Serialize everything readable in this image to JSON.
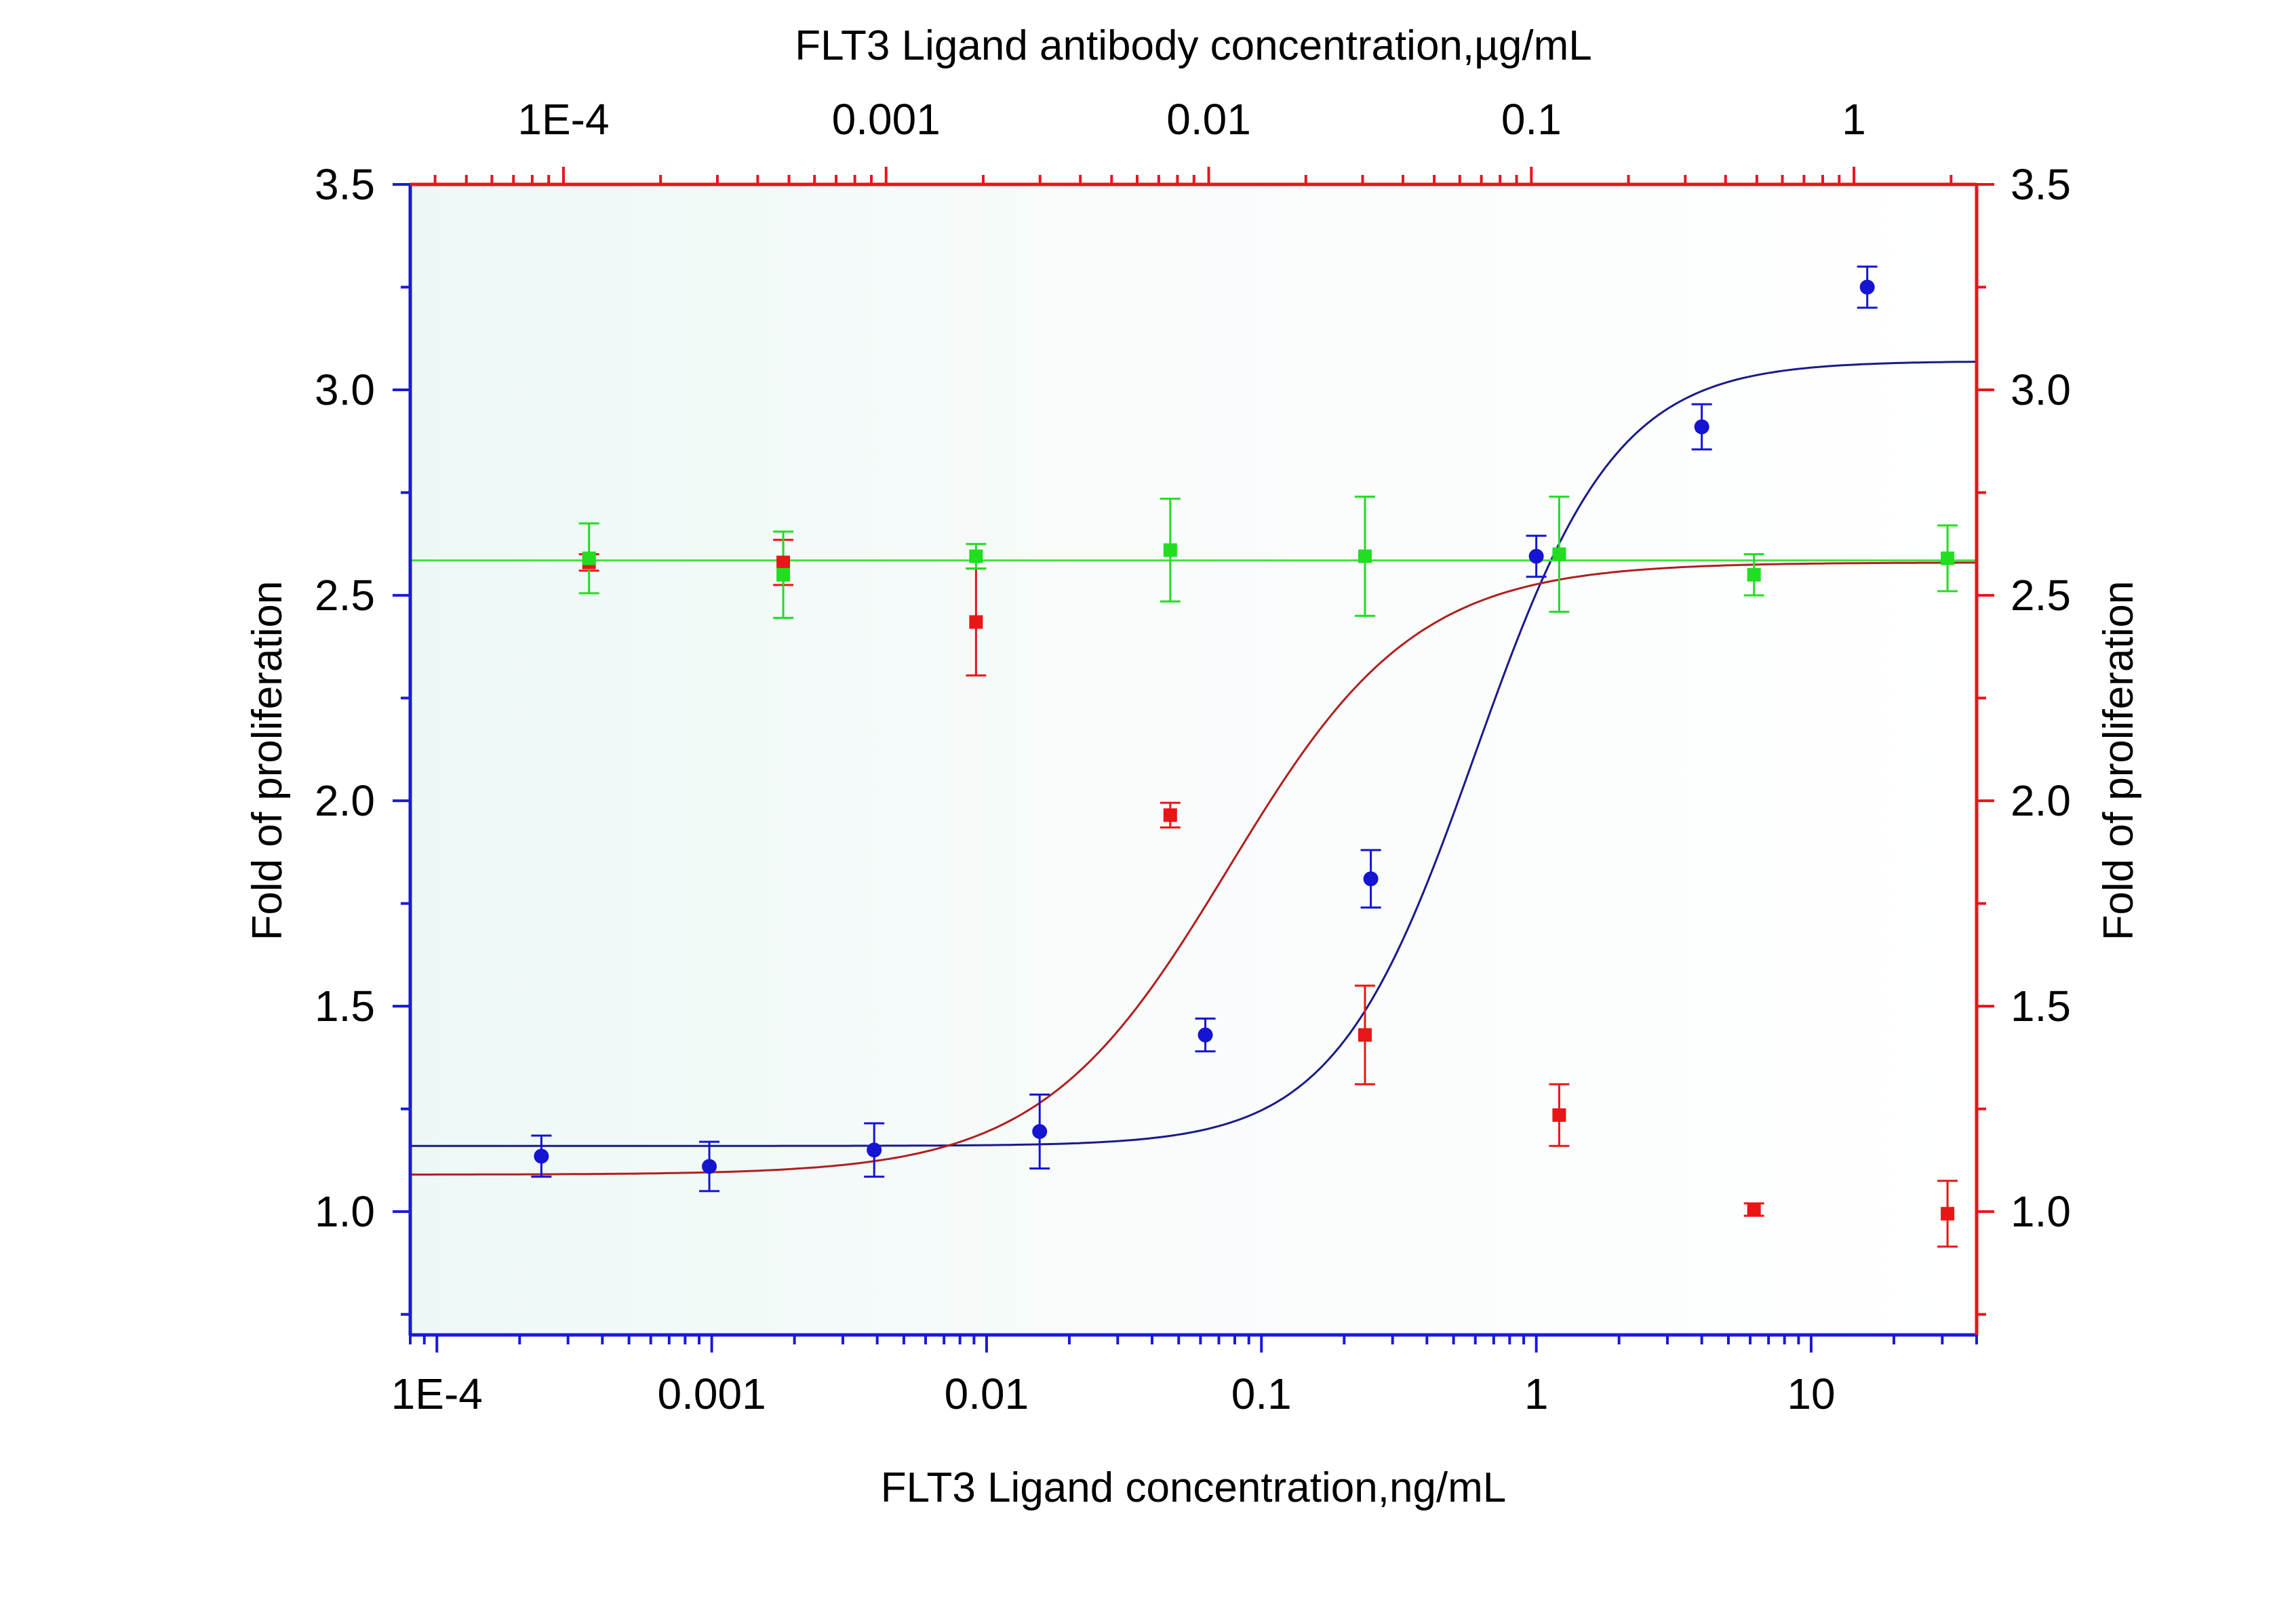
{
  "chart_data": {
    "type": "scatter",
    "title": "",
    "x_axis_bottom": {
      "label": "FLT3 Ligand concentration,ng/mL",
      "scale": "log",
      "range": [
        8e-05,
        40
      ],
      "tick_values": [
        0.0001,
        0.001,
        0.01,
        0.1,
        1,
        10
      ],
      "tick_labels": [
        "1E-4",
        "0.001",
        "0.01",
        "0.1",
        "1",
        "10"
      ],
      "color": "#1a1ad6"
    },
    "x_axis_top": {
      "label": "FLT3 Ligand antibody concentration,µg/mL",
      "scale": "log",
      "range": [
        3.35e-05,
        2.4
      ],
      "tick_values": [
        0.0001,
        0.001,
        0.01,
        0.1,
        1
      ],
      "tick_labels": [
        "1E-4",
        "0.001",
        "0.01",
        "0.1",
        "1"
      ],
      "color": "#e8141d"
    },
    "y_axis_left": {
      "label": "Fold of proliferation",
      "range": [
        0.7,
        3.5
      ],
      "tick_values": [
        1.0,
        1.5,
        2.0,
        2.5,
        3.0,
        3.5
      ],
      "tick_labels": [
        "1.0",
        "1.5",
        "2.0",
        "2.5",
        "3.0",
        "3.5"
      ],
      "color": "#1a1ad6"
    },
    "y_axis_right": {
      "label": "Fold of proliferation",
      "range": [
        0.7,
        3.5
      ],
      "tick_values": [
        1.0,
        1.5,
        2.0,
        2.5,
        3.0,
        3.5
      ],
      "tick_labels": [
        "1.0",
        "1.5",
        "2.0",
        "2.5",
        "3.0",
        "3.5"
      ],
      "color": "#e8141d"
    },
    "grid": false,
    "series": [
      {
        "x_axis": "bottom",
        "color": "#1414d2",
        "curve_color": "#1a1a8a",
        "marker": "circle",
        "points": [
          {
            "x": 0.00024,
            "y": 1.135,
            "err": 0.05
          },
          {
            "x": 0.00098,
            "y": 1.11,
            "err": 0.06
          },
          {
            "x": 0.0039,
            "y": 1.15,
            "err": 0.065
          },
          {
            "x": 0.0156,
            "y": 1.195,
            "err": 0.09
          },
          {
            "x": 0.0625,
            "y": 1.43,
            "err": 0.04
          },
          {
            "x": 0.25,
            "y": 1.81,
            "err": 0.07
          },
          {
            "x": 1.0,
            "y": 2.595,
            "err": 0.05
          },
          {
            "x": 4.0,
            "y": 2.91,
            "err": 0.055
          },
          {
            "x": 16.0,
            "y": 3.25,
            "err": 0.05
          }
        ],
        "fit": {
          "bottom": 1.16,
          "top": 3.07,
          "ec50": 0.6,
          "hill": 1.7
        }
      },
      {
        "x_axis": "top",
        "color": "#e81616",
        "curve_color": "#b01f1f",
        "marker": "square",
        "points": [
          {
            "x": 0.00012,
            "y": 2.58,
            "err": 0.02
          },
          {
            "x": 0.00048,
            "y": 2.58,
            "err": 0.055
          },
          {
            "x": 0.0019,
            "y": 2.435,
            "err": 0.13
          },
          {
            "x": 0.0076,
            "y": 1.965,
            "err": 0.03
          },
          {
            "x": 0.0305,
            "y": 1.43,
            "err": 0.12
          },
          {
            "x": 0.122,
            "y": 1.235,
            "err": 0.075
          },
          {
            "x": 0.49,
            "y": 1.005,
            "err": 0.015
          },
          {
            "x": 1.95,
            "y": 0.995,
            "err": 0.08
          }
        ],
        "fit": {
          "bottom": 1.09,
          "top": 2.58,
          "ec50": 0.0115,
          "hill": 1.5
        }
      },
      {
        "x_axis": "top",
        "color": "#22dd22",
        "curve_color": "#44e044",
        "marker": "square",
        "points": [
          {
            "x": 0.00012,
            "y": 2.59,
            "err": 0.085
          },
          {
            "x": 0.00048,
            "y": 2.55,
            "err": 0.105
          },
          {
            "x": 0.0019,
            "y": 2.595,
            "err": 0.03
          },
          {
            "x": 0.0076,
            "y": 2.61,
            "err": 0.125
          },
          {
            "x": 0.0305,
            "y": 2.595,
            "err": 0.145
          },
          {
            "x": 0.122,
            "y": 2.6,
            "err": 0.14
          },
          {
            "x": 0.49,
            "y": 2.55,
            "err": 0.05
          },
          {
            "x": 1.95,
            "y": 2.59,
            "err": 0.08
          }
        ],
        "fit": {
          "constant": 2.585
        }
      }
    ]
  }
}
